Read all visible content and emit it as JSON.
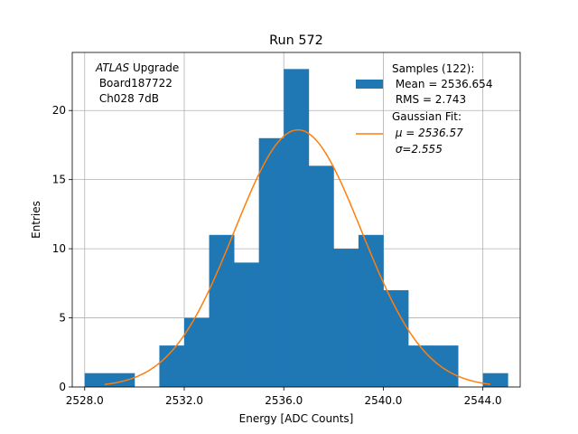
{
  "chart_data": {
    "type": "bar",
    "title": "Run 572",
    "xlabel": "Energy [ADC Counts]",
    "ylabel": "Entries",
    "xlim": [
      2527.5,
      2545.5
    ],
    "ylim": [
      0,
      24.2
    ],
    "xticks": [
      2528.0,
      2532.0,
      2536.0,
      2540.0,
      2544.0
    ],
    "xtick_labels": [
      "2528.0",
      "2532.0",
      "2536.0",
      "2540.0",
      "2544.0"
    ],
    "yticks": [
      0,
      5,
      10,
      15,
      20
    ],
    "ytick_labels": [
      "0",
      "5",
      "10",
      "15",
      "20"
    ],
    "grid": true,
    "bins": [
      {
        "x0": 2528.0,
        "x1": 2529.0,
        "count": 1
      },
      {
        "x0": 2529.0,
        "x1": 2530.0,
        "count": 1
      },
      {
        "x0": 2530.0,
        "x1": 2531.0,
        "count": 0
      },
      {
        "x0": 2531.0,
        "x1": 2532.0,
        "count": 3
      },
      {
        "x0": 2532.0,
        "x1": 2533.0,
        "count": 5
      },
      {
        "x0": 2533.0,
        "x1": 2534.0,
        "count": 11
      },
      {
        "x0": 2534.0,
        "x1": 2535.0,
        "count": 9
      },
      {
        "x0": 2535.0,
        "x1": 2536.0,
        "count": 18
      },
      {
        "x0": 2536.0,
        "x1": 2537.0,
        "count": 23
      },
      {
        "x0": 2537.0,
        "x1": 2538.0,
        "count": 16
      },
      {
        "x0": 2538.0,
        "x1": 2539.0,
        "count": 10
      },
      {
        "x0": 2539.0,
        "x1": 2540.0,
        "count": 11
      },
      {
        "x0": 2540.0,
        "x1": 2541.0,
        "count": 7
      },
      {
        "x0": 2541.0,
        "x1": 2542.0,
        "count": 3
      },
      {
        "x0": 2542.0,
        "x1": 2543.0,
        "count": 3
      },
      {
        "x0": 2543.0,
        "x1": 2544.0,
        "count": 0
      },
      {
        "x0": 2544.0,
        "x1": 2545.0,
        "count": 1
      }
    ],
    "fit": {
      "mu": 2536.57,
      "sigma": 2.555,
      "amplitude": 18.6,
      "x_range": [
        2528.8,
        2544.3
      ]
    },
    "annotation": {
      "italic": "ATLAS",
      "line1_rest": " Upgrade",
      "line2": " Board187722",
      "line3": " Ch028 7dB"
    },
    "legend": {
      "placement": "top-right",
      "samples_lines": [
        "Samples (122):",
        " Mean = 2536.654",
        " RMS = 2.743"
      ],
      "fit_lines": [
        "Gaussian Fit:",
        " μ = 2536.57",
        " σ=2.555"
      ]
    },
    "colors": {
      "bars": "#1f77b4",
      "fit": "#ff7f0e",
      "grid": "#b0b0b0"
    }
  }
}
